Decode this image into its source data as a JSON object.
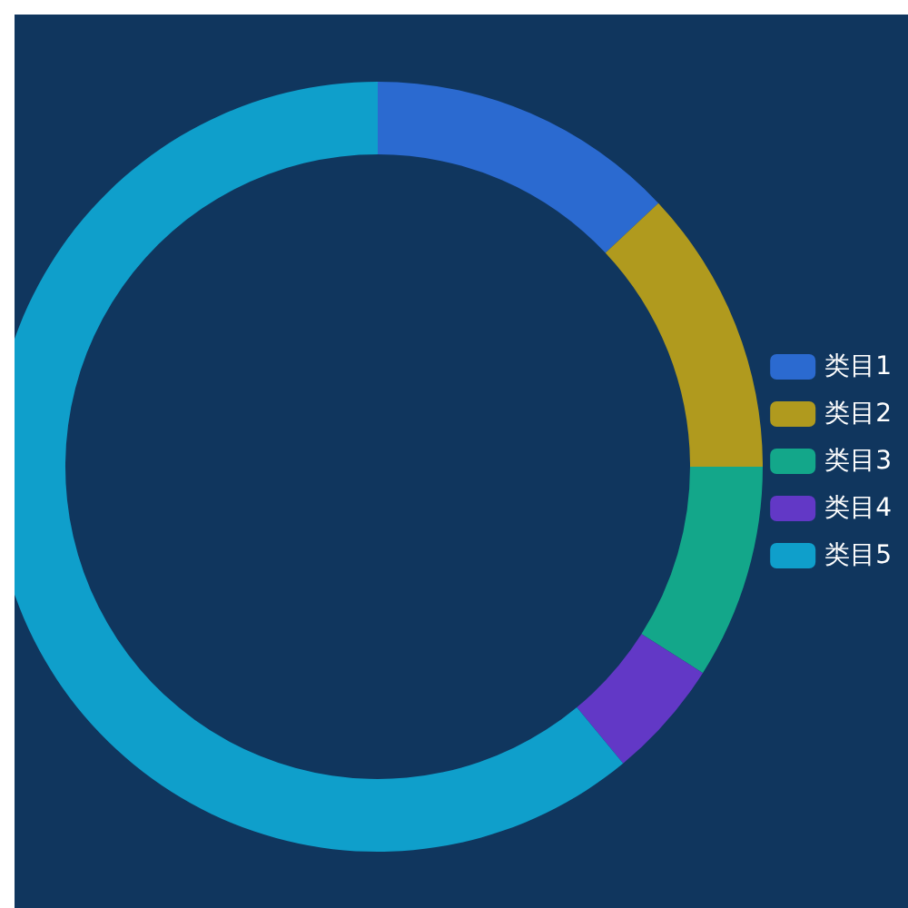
{
  "chart_data": {
    "type": "donut",
    "categories": [
      "类目1",
      "类目2",
      "类目3",
      "类目4",
      "类目5"
    ],
    "values": [
      13,
      12,
      9,
      5,
      61
    ],
    "colors": [
      "#2b6ad0",
      "#b09a1e",
      "#13a78a",
      "#6238c6",
      "#0f9fcb"
    ],
    "legend": "right"
  }
}
